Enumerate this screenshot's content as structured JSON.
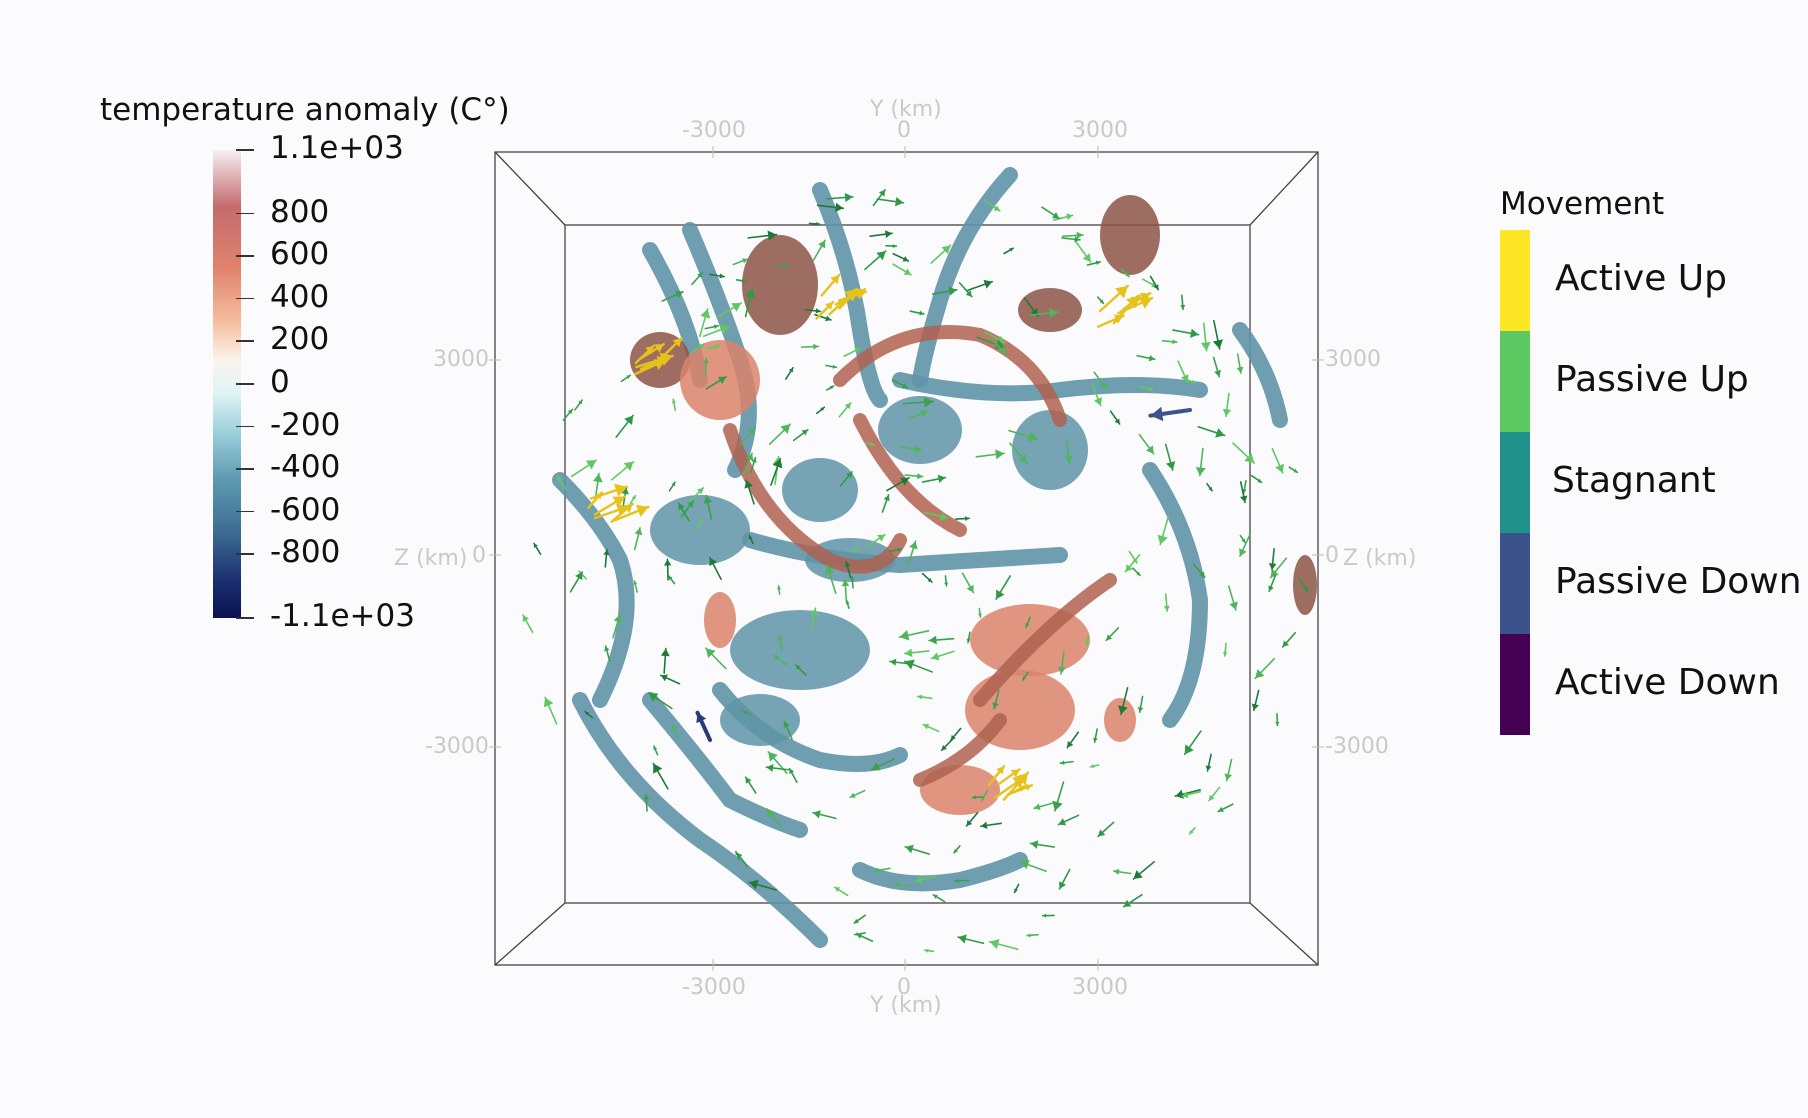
{
  "colorbar": {
    "title": "temperature anomaly (C°)",
    "ticks": [
      {
        "label": "1.1e+03",
        "value": 1100
      },
      {
        "label": "800",
        "value": 800
      },
      {
        "label": "600",
        "value": 600
      },
      {
        "label": "400",
        "value": 400
      },
      {
        "label": "200",
        "value": 200
      },
      {
        "label": "0",
        "value": 0
      },
      {
        "label": "-200",
        "value": -200
      },
      {
        "label": "-400",
        "value": -400
      },
      {
        "label": "-600",
        "value": -600
      },
      {
        "label": "-800",
        "value": -800
      },
      {
        "label": "-1.1e+03",
        "value": -1100
      }
    ],
    "range": [
      -1100,
      1100
    ],
    "colormap": "blue-white-red (diverging)"
  },
  "movement_legend": {
    "title": "Movement",
    "categories": [
      {
        "label": "Active Up",
        "color": "#fde725"
      },
      {
        "label": "Passive Up",
        "color": "#5ec962"
      },
      {
        "label": "Stagnant",
        "color": "#21918c"
      },
      {
        "label": "Passive Down",
        "color": "#3b528b"
      },
      {
        "label": "Active Down",
        "color": "#440154"
      }
    ]
  },
  "axes": {
    "y_title": "Y (km)",
    "z_title": "Z (km)",
    "y_ticks": [
      "-3000",
      "0",
      "3000"
    ],
    "z_ticks": [
      "3000",
      "0",
      "-3000"
    ]
  },
  "colors": {
    "cold_blob": "#5f94a8",
    "hot_blob": "#d9826a",
    "hot_dark": "#8d5447",
    "arrow": "#3aa14a",
    "frame": "#444444",
    "axis_text": "#c9c9c9"
  }
}
